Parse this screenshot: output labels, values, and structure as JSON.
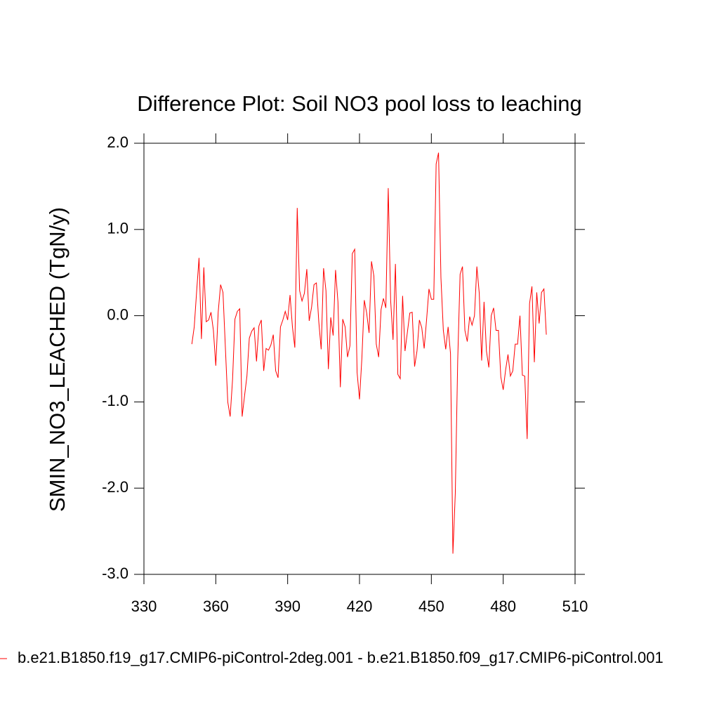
{
  "chart_data": {
    "type": "line",
    "title": "Difference Plot: Soil NO3 pool loss to leaching",
    "y_label": "SMIN_NO3_LEACHED  (TgN/y)",
    "x": [
      350,
      351,
      352,
      353,
      354,
      355,
      356,
      357,
      358,
      359,
      360,
      361,
      362,
      363,
      364,
      365,
      366,
      367,
      368,
      369,
      370,
      371,
      372,
      373,
      374,
      375,
      376,
      377,
      378,
      379,
      380,
      381,
      382,
      383,
      384,
      385,
      386,
      387,
      388,
      389,
      390,
      391,
      392,
      393,
      394,
      395,
      396,
      397,
      398,
      399,
      400,
      401,
      402,
      403,
      404,
      405,
      406,
      407,
      408,
      409,
      410,
      411,
      412,
      413,
      414,
      415,
      416,
      417,
      418,
      419,
      420,
      421,
      422,
      423,
      424,
      425,
      426,
      427,
      428,
      429,
      430,
      431,
      432,
      433,
      434,
      435,
      436,
      437,
      438,
      439,
      440,
      441,
      442,
      443,
      444,
      445,
      446,
      447,
      448,
      449,
      450,
      451,
      452,
      453,
      454,
      455,
      456,
      457,
      458,
      459,
      460,
      461,
      462,
      463,
      464,
      465,
      466,
      467,
      468,
      469,
      470,
      471,
      472,
      473,
      474,
      475,
      476,
      477,
      478,
      479,
      480,
      481,
      482,
      483,
      484,
      485,
      486,
      487,
      488,
      489,
      490,
      491,
      492,
      493,
      494,
      495,
      496,
      497,
      498
    ],
    "series": [
      {
        "name": "b.e21.B1850.f19_g17.CMIP6-piControl-2deg.001 - b.e21.B1850.f09_g17.CMIP6-piControl.001",
        "color": "#ff0000",
        "values": [
          -0.33,
          -0.13,
          0.28,
          0.67,
          -0.27,
          0.56,
          -0.07,
          -0.05,
          0.04,
          -0.17,
          -0.58,
          0.04,
          0.36,
          0.27,
          -0.37,
          -1.0,
          -1.17,
          -0.74,
          -0.04,
          0.05,
          0.08,
          -1.17,
          -0.93,
          -0.7,
          -0.26,
          -0.18,
          -0.14,
          -0.53,
          -0.12,
          -0.05,
          -0.64,
          -0.38,
          -0.4,
          -0.34,
          -0.22,
          -0.64,
          -0.72,
          -0.13,
          -0.05,
          0.05,
          -0.05,
          0.24,
          -0.13,
          -0.37,
          1.25,
          0.29,
          0.17,
          0.26,
          0.54,
          -0.06,
          0.1,
          0.36,
          0.38,
          -0.07,
          -0.39,
          0.55,
          0.29,
          -0.62,
          -0.02,
          -0.23,
          0.53,
          0.16,
          -0.83,
          -0.04,
          -0.13,
          -0.48,
          -0.35,
          0.72,
          0.77,
          -0.66,
          -0.97,
          -0.49,
          0.18,
          0.03,
          -0.2,
          0.63,
          0.46,
          -0.33,
          -0.48,
          0.07,
          0.2,
          0.09,
          1.48,
          0.18,
          -0.28,
          0.6,
          -0.68,
          -0.73,
          0.23,
          -0.41,
          -0.19,
          0.03,
          0.04,
          -0.59,
          -0.41,
          -0.05,
          -0.14,
          -0.38,
          -0.05,
          0.31,
          0.19,
          0.19,
          1.76,
          1.89,
          0.44,
          -0.17,
          -0.39,
          -0.13,
          -0.44,
          -2.76,
          -2.06,
          -0.52,
          0.48,
          0.57,
          -0.17,
          -0.3,
          -0.01,
          -0.11,
          0.0,
          0.57,
          0.26,
          -0.52,
          0.16,
          -0.41,
          -0.6,
          0.0,
          0.09,
          -0.17,
          -0.17,
          -0.71,
          -0.86,
          -0.63,
          -0.45,
          -0.7,
          -0.64,
          -0.33,
          -0.33,
          0.0,
          -0.69,
          -0.7,
          -1.43,
          0.14,
          0.34,
          -0.54,
          0.27,
          -0.09,
          0.27,
          0.31,
          -0.22
        ]
      }
    ],
    "xlim": [
      330,
      510
    ],
    "xticks": [
      330,
      360,
      390,
      420,
      450,
      480,
      510
    ],
    "ylim": [
      -3.0,
      2.0
    ],
    "yticks": [
      {
        "value": -3,
        "label": "-3.0"
      },
      {
        "value": -2,
        "label": "-2.0"
      },
      {
        "value": -1,
        "label": "-1.0"
      },
      {
        "value": 0,
        "label": "0.0"
      },
      {
        "value": 1,
        "label": "1.0"
      },
      {
        "value": 2,
        "label": "2.0"
      }
    ]
  }
}
